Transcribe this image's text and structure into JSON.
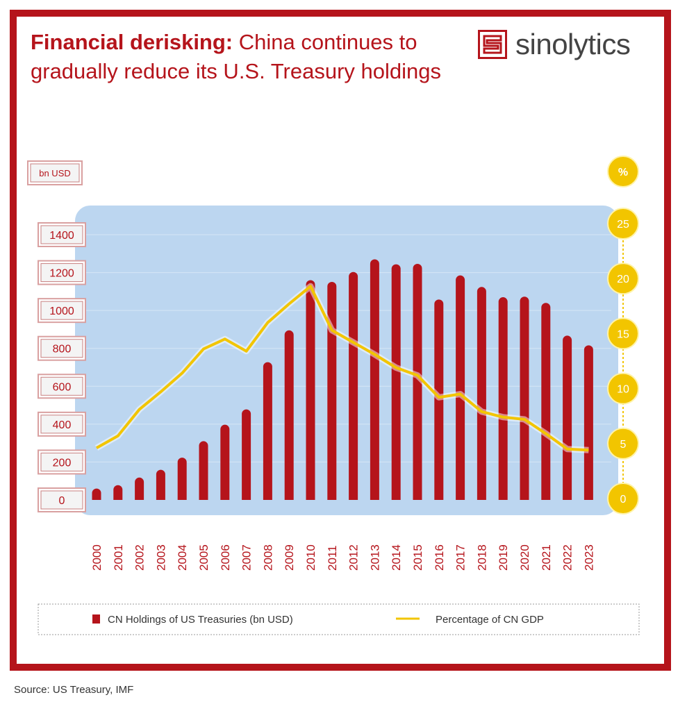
{
  "title": {
    "bold": "Financial derisking:",
    "rest": " China continues to gradually reduce its U.S. Treasury holdings"
  },
  "logo": {
    "text": "sinolytics"
  },
  "source": "Source: US Treasury, IMF",
  "colors": {
    "brand": "#b5141b",
    "line": "#f2c500",
    "plot_bg": "#bcd6f0"
  },
  "chart_data": {
    "type": "bar",
    "categories": [
      "2000",
      "2001",
      "2002",
      "2003",
      "2004",
      "2005",
      "2006",
      "2007",
      "2008",
      "2009",
      "2010",
      "2011",
      "2012",
      "2013",
      "2014",
      "2015",
      "2016",
      "2017",
      "2018",
      "2019",
      "2020",
      "2021",
      "2022",
      "2023"
    ],
    "series": [
      {
        "name": "CN Holdings of US Treasuries (bn USD)",
        "type": "bar",
        "axis": "left",
        "values": [
          60,
          78,
          118,
          159,
          223,
          310,
          397,
          478,
          727,
          895,
          1160,
          1151,
          1203,
          1270,
          1244,
          1246,
          1058,
          1185,
          1124,
          1070,
          1073,
          1040,
          867,
          816
        ]
      },
      {
        "name": "Percentage of CN GDP",
        "type": "line",
        "axis": "right",
        "values": [
          4.6,
          5.7,
          8.1,
          9.7,
          11.4,
          13.6,
          14.5,
          13.4,
          16.0,
          17.7,
          19.3,
          15.3,
          14.2,
          13.1,
          11.9,
          11.2,
          9.2,
          9.5,
          7.9,
          7.4,
          7.2,
          5.9,
          4.5,
          4.4
        ]
      }
    ],
    "left_axis": {
      "label": "bn USD",
      "ticks": [
        "0",
        "200",
        "400",
        "600",
        "800",
        "1000",
        "1200",
        "1400"
      ],
      "ylim": [
        0,
        1400
      ]
    },
    "right_axis": {
      "label": "%",
      "ticks": [
        "0",
        "5",
        "10",
        "15",
        "20",
        "25"
      ],
      "ylim": [
        0,
        25
      ]
    },
    "legend": {
      "placement": "bottom",
      "items": [
        "CN Holdings of US Treasuries (bn USD)",
        "Percentage of CN GDP"
      ]
    },
    "grid": true
  }
}
